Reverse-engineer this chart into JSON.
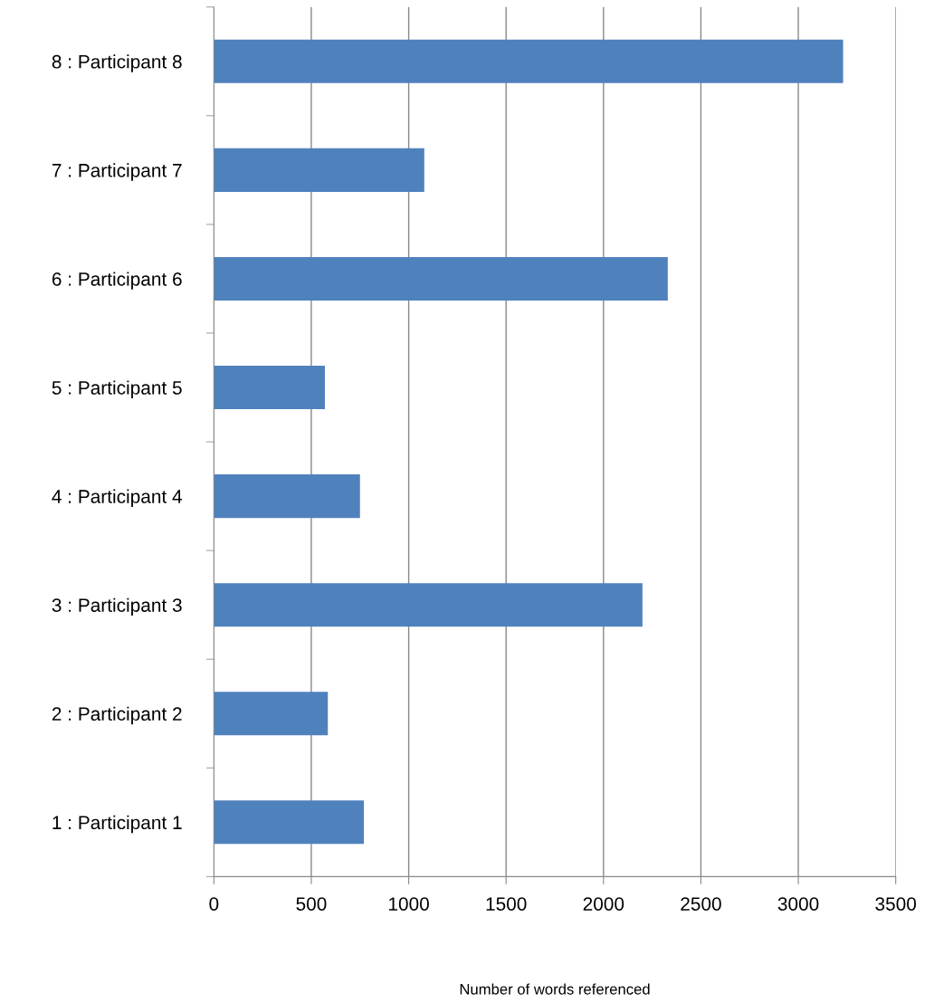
{
  "chart_data": {
    "type": "bar",
    "orientation": "horizontal",
    "xlabel": "Number of words referenced",
    "categories": [
      "8 : Participant 8",
      "7 : Participant 7",
      "6 : Participant 6",
      "5 : Participant 5",
      "4 : Participant 4",
      "3 : Participant 3",
      "2 : Participant 2",
      "1 : Participant 1"
    ],
    "values": [
      3230,
      1080,
      2330,
      570,
      750,
      2200,
      585,
      770
    ],
    "color": "#4f81bd",
    "xlim": [
      0,
      3500
    ],
    "xticks": [
      0,
      500,
      1000,
      1500,
      2000,
      2500,
      3000,
      3500
    ],
    "grid": "x"
  }
}
